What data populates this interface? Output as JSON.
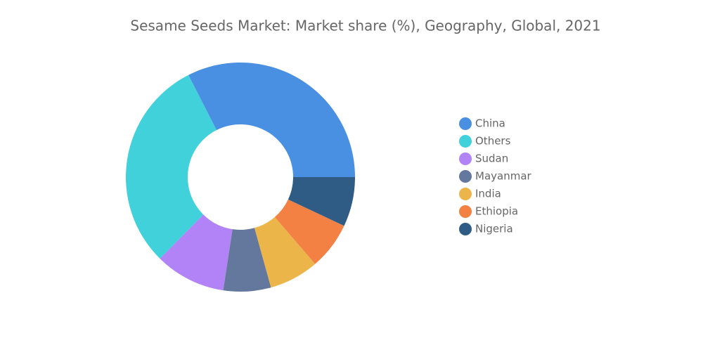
{
  "chart_data": {
    "type": "donut",
    "title": "Sesame Seeds Market: Market share (%), Geography, Global, 2021",
    "categories": [
      "China",
      "Others",
      "Sudan",
      "Mayanmar",
      "India",
      "Ethiopia",
      "Nigeria"
    ],
    "values": [
      32.5,
      30.1,
      10,
      6.7,
      7,
      6.7,
      7
    ],
    "colors": [
      "#4a90e2",
      "#41d1da",
      "#b183f7",
      "#64779c",
      "#ecb54a",
      "#f28143",
      "#2f5c85"
    ],
    "legend": "right"
  }
}
